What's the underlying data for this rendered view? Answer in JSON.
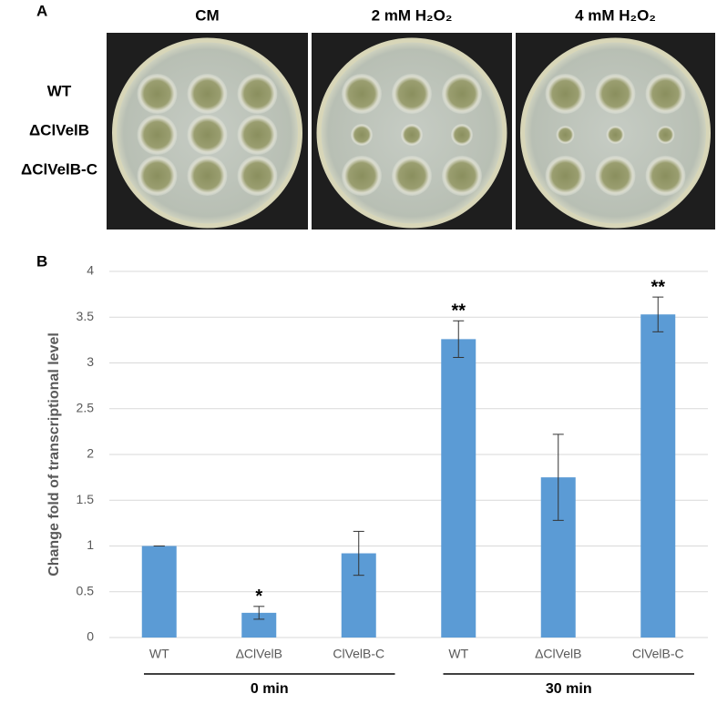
{
  "panel_a": {
    "label": "A",
    "columns": [
      "CM",
      "2 mM H₂O₂",
      "4 mM H₂O₂"
    ],
    "rows": [
      "WT",
      "ΔClVelB",
      "ΔClVelB-C"
    ]
  },
  "chart_data": {
    "type": "bar",
    "label": "B",
    "y_label": "Change fold of transcriptional level",
    "categories": [
      "WT",
      "ΔClVelB",
      "ClVelB-C",
      "WT",
      "ΔClVelB",
      "ClVelB-C"
    ],
    "values": [
      1.0,
      0.27,
      0.92,
      3.26,
      1.75,
      3.53
    ],
    "errors": [
      0.0,
      0.07,
      0.24,
      0.2,
      0.47,
      0.19
    ],
    "significance": [
      null,
      "*",
      null,
      "**",
      null,
      "**"
    ],
    "groups": [
      "0 min",
      "30 min"
    ],
    "color": "#5b9bd5",
    "ylim": [
      0,
      4
    ],
    "yticks": [
      0,
      0.5,
      1,
      1.5,
      2,
      2.5,
      3,
      3.5,
      4
    ],
    "grid": true
  }
}
